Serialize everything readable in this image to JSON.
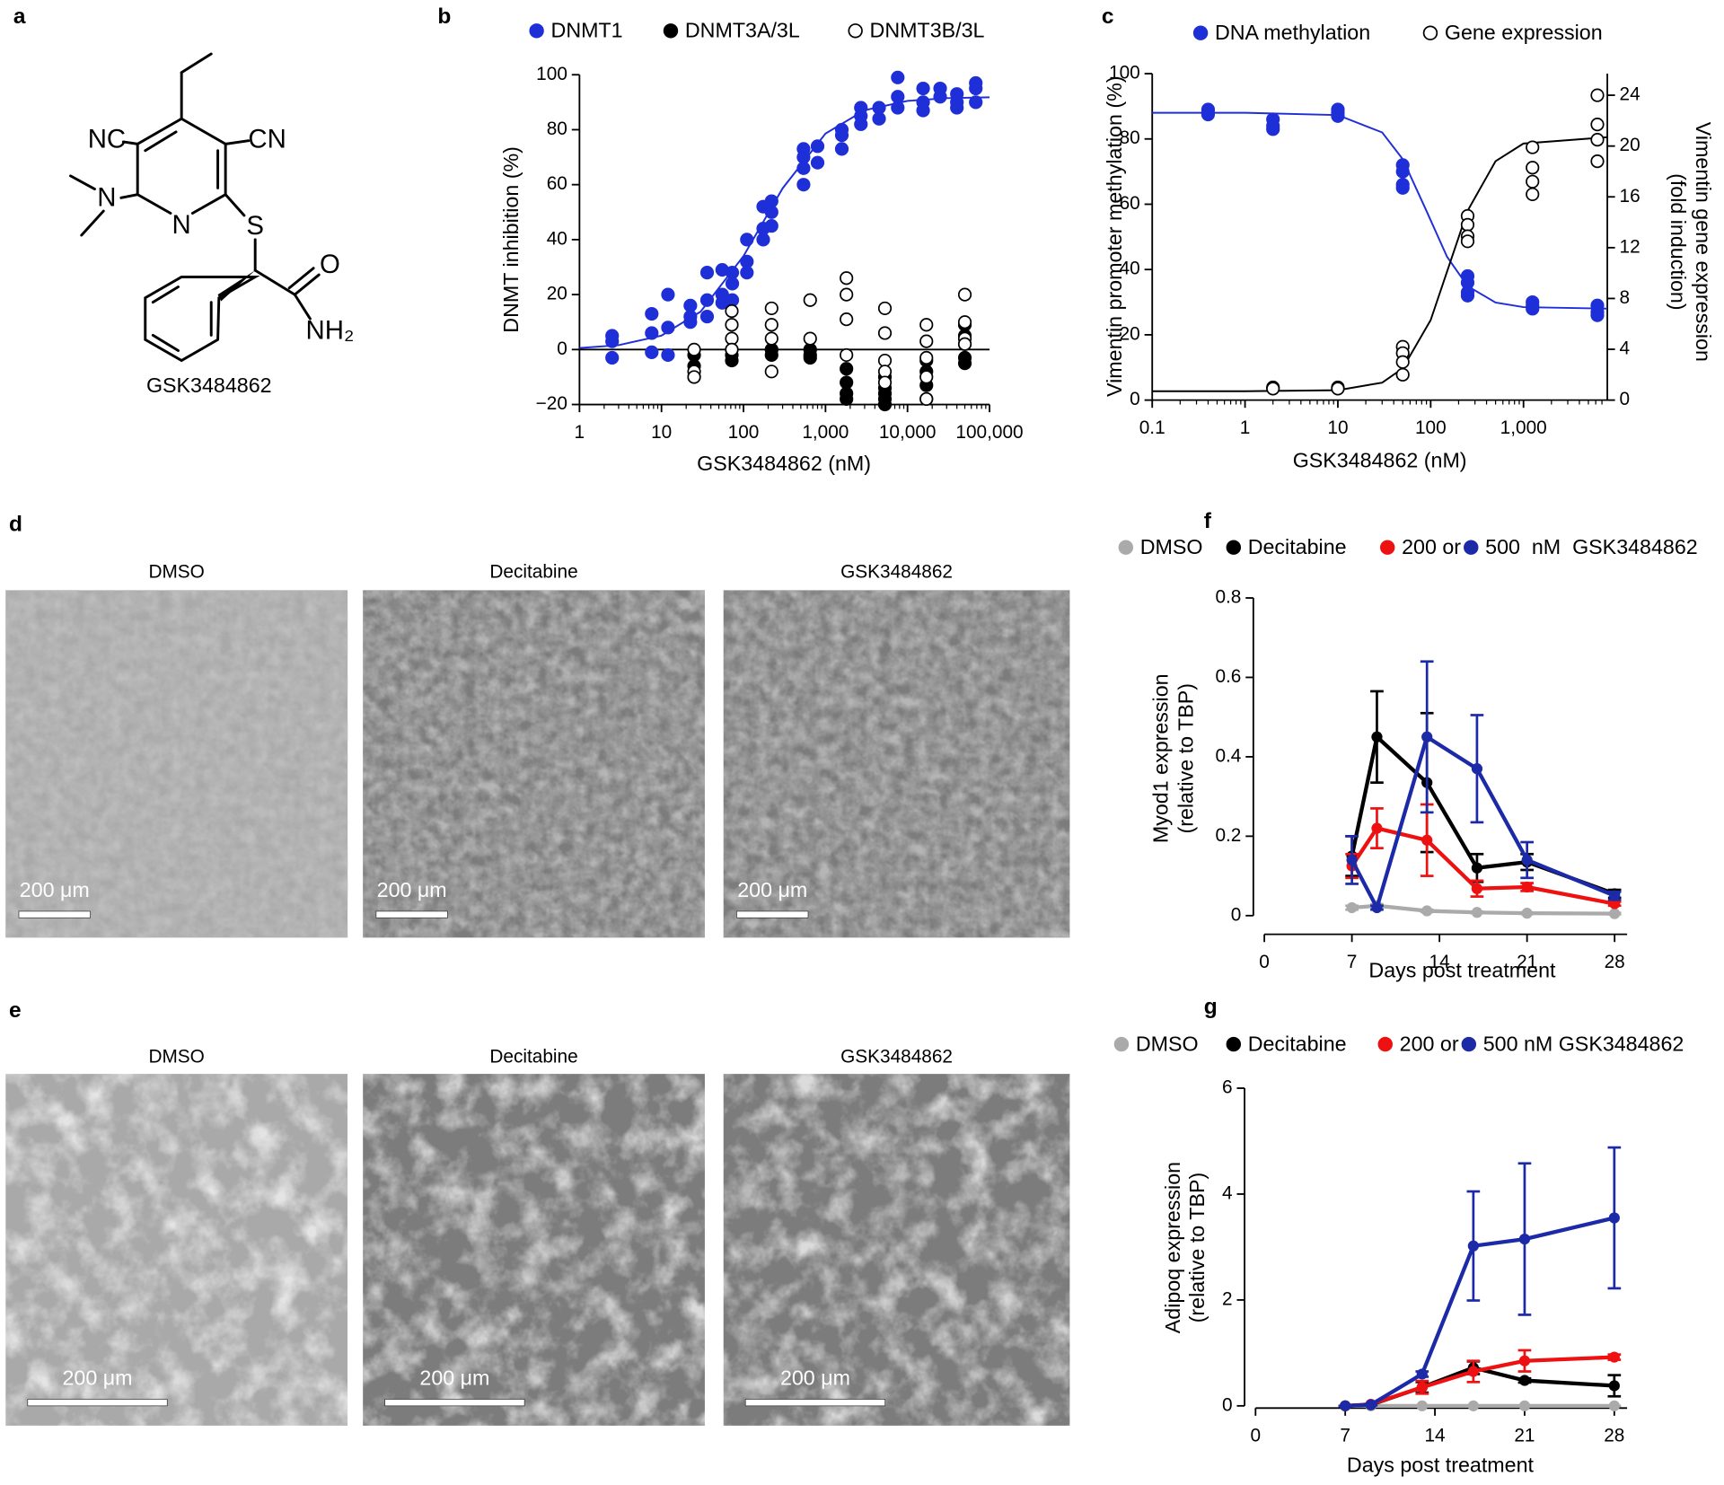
{
  "structure": {
    "label": "a",
    "atoms": {
      "nc": "NC",
      "cn": "CN",
      "n_amine": "N",
      "n_ring": "N",
      "s": "S",
      "o": "O",
      "nh2": "NH₂"
    },
    "name": "GSK3484862"
  },
  "chart_data": [
    {
      "label": "b",
      "type": "scatter",
      "xlabel": "GSK3484862 (nM)",
      "ylabel": "DNMT inhibition (%)",
      "xscale": "log",
      "xlim": [
        1,
        100000
      ],
      "xticks": [
        1,
        10,
        100,
        {
          "value": 1000,
          "label": "1,000"
        },
        {
          "value": 10000,
          "label": "10,000"
        },
        {
          "value": 100000,
          "label": "100,000"
        }
      ],
      "ylim": [
        -20,
        100
      ],
      "yticks": [
        {
          "value": -20,
          "label": "−20"
        },
        0,
        20,
        40,
        60,
        80,
        100
      ],
      "hline": 0,
      "series": [
        {
          "name": "DNMT1",
          "color": "#1f2fd8",
          "marker": "filled",
          "x": [
            2.5,
            2.5,
            2.5,
            7.6,
            7.6,
            7.6,
            12,
            12,
            12,
            22.5,
            22.5,
            22.5,
            36,
            36,
            36,
            55,
            55,
            55,
            73,
            73,
            73,
            110,
            110,
            110,
            174,
            174,
            174,
            220,
            220,
            220,
            540,
            540,
            540,
            540,
            800,
            800,
            1580,
            1580,
            1580,
            2700,
            2700,
            2700,
            4500,
            4500,
            7600,
            7600,
            7600,
            15500,
            15500,
            15500,
            25000,
            25000,
            40000,
            40000,
            40000,
            68000,
            68000,
            68000
          ],
          "values": [
            5,
            3,
            -3,
            13,
            6,
            -1,
            20,
            8,
            -2,
            16,
            12,
            10,
            28,
            18,
            12,
            29,
            20,
            17,
            28,
            24,
            18,
            40,
            32,
            28,
            52,
            44,
            40,
            54,
            50,
            45,
            73,
            70,
            66,
            60,
            74,
            68,
            80,
            78,
            73,
            88,
            85,
            82,
            88,
            84,
            99,
            92,
            88,
            95,
            90,
            87,
            95,
            92,
            93,
            90,
            88,
            97,
            95,
            90
          ]
        },
        {
          "name": "DNMT3A/3L",
          "color": "#000000",
          "marker": "filled",
          "x": [
            25,
            25,
            25,
            72,
            72,
            72,
            220,
            220,
            220,
            650,
            650,
            650,
            1800,
            1800,
            1800,
            1800,
            5300,
            5300,
            5300,
            5300,
            5300,
            17000,
            17000,
            17000,
            17000,
            50000,
            50000,
            50000,
            50000,
            50000
          ],
          "values": [
            -6,
            -10,
            -2,
            -4,
            -2,
            0,
            -2,
            0,
            0,
            0,
            -2,
            -3,
            -7,
            -12,
            -16,
            -18,
            -10,
            -14,
            -18,
            -20,
            -16,
            -4,
            -8,
            -13,
            -18,
            9,
            5,
            2,
            -3,
            -5
          ]
        },
        {
          "name": "DNMT3B/3L",
          "color": "#000000",
          "marker": "open",
          "x": [
            25,
            25,
            25,
            72,
            72,
            72,
            72,
            220,
            220,
            220,
            220,
            650,
            650,
            1800,
            1800,
            1800,
            1800,
            5300,
            5300,
            5300,
            5300,
            5300,
            17000,
            17000,
            17000,
            17000,
            17000,
            50000,
            50000,
            50000,
            50000
          ],
          "values": [
            0,
            -8,
            -10,
            14,
            9,
            4,
            0,
            15,
            9,
            4,
            -8,
            18,
            4,
            26,
            20,
            11,
            -2,
            15,
            6,
            -4,
            -8,
            -12,
            9,
            3,
            -3,
            -10,
            -18,
            20,
            10,
            4,
            2
          ]
        }
      ],
      "fit": [
        {
          "color": "#1f2fd8",
          "x": [
            1,
            3,
            10,
            30,
            100,
            300,
            1000,
            3000,
            10000,
            30000,
            100000
          ],
          "values": [
            0.54,
            1.6,
            5.1,
            13.8,
            34,
            58.7,
            78.6,
            87.1,
            90.5,
            91.5,
            91.8
          ]
        }
      ]
    },
    {
      "label": "c",
      "type": "scatter",
      "xlabel": "GSK3484862 (nM)",
      "ylabel": "Vimentin promoter methylation (%)",
      "y2label": [
        "Vimentin gene expression",
        "(fold induction)"
      ],
      "xscale": "log",
      "xlim": [
        0.1,
        8000
      ],
      "xticks": [
        0.1,
        1,
        10,
        100,
        {
          "value": 1000,
          "label": "1,000"
        }
      ],
      "ylim": [
        0,
        100
      ],
      "yticks": [
        0,
        20,
        40,
        60,
        80,
        100
      ],
      "y2lim": [
        0,
        25.7
      ],
      "y2ticks": [
        0,
        4,
        8,
        12,
        16,
        20,
        24
      ],
      "series": [
        {
          "name": "DNA methylation",
          "color": "#1f2fd8",
          "marker": "filled",
          "x": [
            0.4,
            0.4,
            0.4,
            2,
            2,
            2,
            10,
            10,
            10,
            50,
            50,
            50,
            50,
            250,
            250,
            250,
            250,
            1250,
            1250,
            1250,
            6250,
            6250,
            6250
          ],
          "values": [
            89,
            88,
            87.5,
            86,
            84,
            83,
            89,
            88,
            87,
            72,
            70,
            66,
            65,
            38,
            36,
            33,
            32,
            30,
            29,
            28,
            29,
            27,
            26
          ]
        },
        {
          "name": "Gene expression",
          "color": "#000000",
          "marker": "open",
          "axis": "y2",
          "x": [
            2,
            2,
            10,
            10,
            50,
            50,
            50,
            50,
            250,
            250,
            250,
            250,
            1250,
            1250,
            1250,
            1250,
            6250,
            6250,
            6250,
            6250
          ],
          "values": [
            1.0,
            0.9,
            1.0,
            0.9,
            4.2,
            3.7,
            3.0,
            2.0,
            14.5,
            13.8,
            12.9,
            12.5,
            19.9,
            18.3,
            17.2,
            16.2,
            24.0,
            21.7,
            20.5,
            18.8
          ]
        }
      ],
      "fit": [
        {
          "color": "#1f2fd8",
          "x": [
            0.1,
            1,
            10,
            30,
            50,
            90,
            150,
            250,
            500,
            1000,
            8000
          ],
          "values": [
            88,
            88,
            87.3,
            82,
            73.8,
            58,
            43.9,
            34.9,
            29.9,
            28.5,
            28
          ]
        },
        {
          "color": "#000000",
          "axis": "y2",
          "x": [
            0.1,
            1,
            10,
            30,
            50,
            100,
            160,
            250,
            500,
            1000,
            8000
          ],
          "values": [
            0.7,
            0.7,
            0.78,
            1.38,
            2.5,
            6.3,
            10.7,
            14.9,
            18.8,
            20.2,
            20.7
          ]
        }
      ]
    },
    {
      "label": "f",
      "type": "line",
      "xlabel": "Days post treatment",
      "ylabel": [
        "Myod1 expression",
        "(relative to TBP)"
      ],
      "xlim": [
        0,
        29
      ],
      "xticks": [
        0,
        7,
        14,
        21,
        28
      ],
      "ylim": [
        0,
        0.8
      ],
      "yticks": [
        0,
        0.2,
        0.4,
        0.6,
        0.8
      ],
      "series": [
        {
          "name": "DMSO",
          "color": "#aaaaaa",
          "x": [
            7,
            9,
            13,
            17,
            21,
            28
          ],
          "values": [
            0.02,
            0.025,
            0.012,
            0.008,
            0.006,
            0.005
          ],
          "errors": [
            0.005,
            0.004,
            0.003,
            0.002,
            0.002,
            0.002
          ]
        },
        {
          "name": "Decitabine",
          "color": "#000000",
          "x": [
            7,
            9,
            13,
            17,
            21,
            28
          ],
          "values": [
            0.15,
            0.45,
            0.335,
            0.12,
            0.135,
            0.055
          ],
          "errors": [
            0.05,
            0.115,
            0.175,
            0.035,
            0.02,
            0.01
          ]
        },
        {
          "name": "200 or",
          "color": "#ee1111",
          "x": [
            7,
            9,
            13,
            17,
            21,
            28
          ],
          "values": [
            0.125,
            0.22,
            0.19,
            0.068,
            0.072,
            0.03
          ],
          "errors": [
            0.03,
            0.05,
            0.09,
            0.02,
            0.01,
            0.005
          ]
        },
        {
          "name": "500  nM  GSK3484862",
          "color": "#1c2aa8",
          "x": [
            7,
            9,
            13,
            17,
            21,
            28
          ],
          "values": [
            0.14,
            0.02,
            0.45,
            0.37,
            0.14,
            0.05
          ],
          "errors": [
            0.06,
            0.005,
            0.19,
            0.135,
            0.045,
            0.01
          ]
        }
      ]
    },
    {
      "label": "g",
      "type": "line",
      "xlabel": "Days post treatment",
      "ylabel": [
        "Adipoq expression",
        "(relative to TBP)"
      ],
      "xlim": [
        0,
        29
      ],
      "xticks": [
        0,
        7,
        14,
        21,
        28
      ],
      "ylim": [
        0,
        6
      ],
      "yticks": [
        0,
        2,
        4,
        6
      ],
      "series": [
        {
          "name": "DMSO",
          "color": "#aaaaaa",
          "x": [
            7,
            9,
            13,
            17,
            21,
            28
          ],
          "values": [
            0,
            0,
            0,
            0,
            0,
            0
          ],
          "errors": [
            0,
            0,
            0,
            0,
            0,
            0
          ]
        },
        {
          "name": "Decitabine",
          "color": "#000000",
          "x": [
            7,
            9,
            13,
            17,
            21,
            28
          ],
          "values": [
            0,
            0.02,
            0.35,
            0.72,
            0.48,
            0.38
          ],
          "errors": [
            0,
            0.01,
            0.1,
            0.12,
            0.04,
            0.2
          ]
        },
        {
          "name": "200 or",
          "color": "#ee1111",
          "x": [
            7,
            9,
            13,
            17,
            21,
            28
          ],
          "values": [
            0,
            0.03,
            0.35,
            0.65,
            0.85,
            0.92
          ],
          "errors": [
            0,
            0.01,
            0.12,
            0.2,
            0.2,
            0.05
          ]
        },
        {
          "name": "500 nM GSK3484862",
          "color": "#1c2aa8",
          "x": [
            7,
            9,
            13,
            17,
            21,
            28
          ],
          "values": [
            0,
            0.02,
            0.6,
            3.02,
            3.15,
            3.55
          ],
          "errors": [
            0,
            0.01,
            0.05,
            1.03,
            1.43,
            1.33
          ]
        }
      ]
    }
  ],
  "micrographs": [
    {
      "label": "d",
      "panels": [
        {
          "title": "DMSO",
          "scale_bar": "200 μm"
        },
        {
          "title": "Decitabine",
          "scale_bar": "200 μm"
        },
        {
          "title": "GSK3484862",
          "scale_bar": "200 μm"
        }
      ]
    },
    {
      "label": "e",
      "panels": [
        {
          "title": "DMSO",
          "scale_bar": "200 μm"
        },
        {
          "title": "Decitabine",
          "scale_bar": "200 μm"
        },
        {
          "title": "GSK3484862",
          "scale_bar": "200 μm"
        }
      ]
    }
  ]
}
